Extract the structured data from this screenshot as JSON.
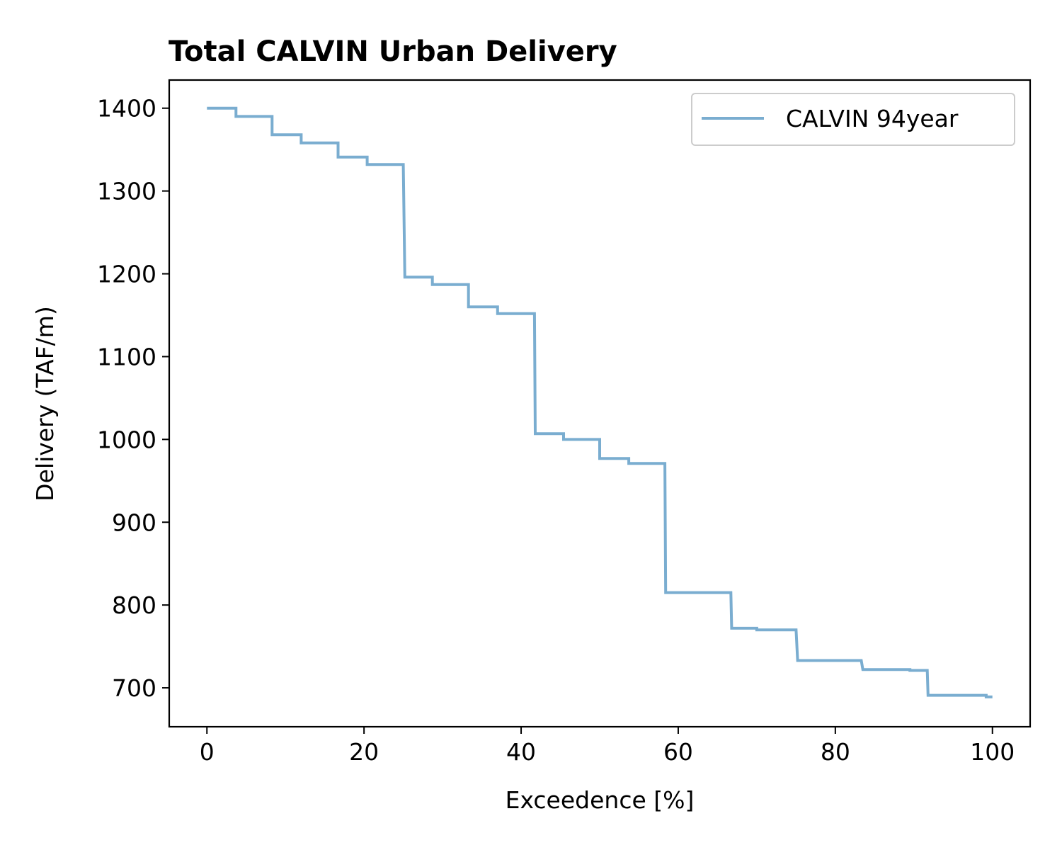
{
  "chart_data": {
    "type": "line",
    "title": "Total CALVIN Urban Delivery",
    "xlabel": "Exceedence [%]",
    "ylabel": "Delivery (TAF/m)",
    "xlim": [
      -4.8,
      104.8
    ],
    "ylim": [
      653,
      1434
    ],
    "xticks": [
      0,
      20,
      40,
      60,
      80,
      100
    ],
    "yticks": [
      700,
      800,
      900,
      1000,
      1100,
      1200,
      1300,
      1400
    ],
    "grid": false,
    "legend": "top-right",
    "series": [
      {
        "name": "CALVIN 94year",
        "color": "#7aadd0",
        "x": [
          0,
          3.7,
          3.7,
          8.3,
          8.3,
          12.0,
          12.0,
          16.7,
          16.7,
          20.4,
          20.4,
          25.0,
          25.2,
          28.7,
          28.7,
          33.3,
          33.3,
          37.0,
          37.0,
          41.7,
          41.8,
          45.4,
          45.4,
          50.0,
          50.0,
          53.7,
          53.7,
          58.3,
          58.4,
          66.7,
          66.8,
          70.0,
          70.0,
          75.0,
          75.2,
          83.3,
          83.5,
          89.5,
          89.5,
          91.7,
          91.8,
          99.2,
          99.2,
          100
        ],
        "y": [
          1400,
          1400,
          1390,
          1390,
          1368,
          1368,
          1358,
          1358,
          1341,
          1341,
          1332,
          1332,
          1196,
          1196,
          1187,
          1187,
          1160,
          1160,
          1152,
          1152,
          1007,
          1007,
          1000,
          1000,
          977,
          977,
          971,
          971,
          815,
          815,
          772,
          772,
          770,
          770,
          733,
          733,
          722,
          722,
          721,
          721,
          691,
          691,
          689,
          689
        ]
      }
    ]
  }
}
